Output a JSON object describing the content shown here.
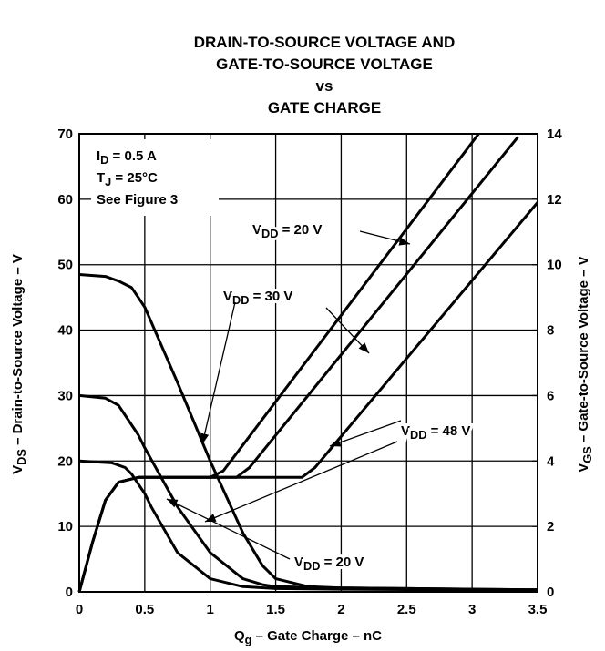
{
  "chart_data": {
    "type": "line",
    "title": [
      "DRAIN-TO-SOURCE VOLTAGE AND",
      "GATE-TO-SOURCE VOLTAGE",
      "vs",
      "GATE CHARGE"
    ],
    "xlabel": {
      "prefix": "Q",
      "sub": "g",
      "suffix": " – Gate Charge – nC"
    },
    "ylabel": {
      "prefix": "V",
      "sub": "DS",
      "suffix": " – Drain-to-Source Voltage – V"
    },
    "y2label": {
      "prefix": "V",
      "sub": "GS",
      "suffix": " – Gate-to-Source Voltage – V"
    },
    "xlim": [
      0,
      3.5
    ],
    "xticks": [
      0,
      0.5,
      1,
      1.5,
      2,
      2.5,
      3,
      3.5
    ],
    "ylim": [
      0,
      70
    ],
    "yticks": [
      0,
      10,
      20,
      30,
      40,
      50,
      60,
      70
    ],
    "y2lim": [
      0,
      14
    ],
    "y2ticks": [
      0,
      2,
      4,
      6,
      8,
      10,
      12,
      14
    ],
    "grid": true,
    "color": "#000000",
    "conditions": [
      {
        "prefix": "I",
        "sub": "D",
        "suffix": " = 0.5 A"
      },
      {
        "prefix": "T",
        "sub": "J",
        "suffix": " = 25°C"
      },
      {
        "prefix": "See Figure 3",
        "sub": "",
        "suffix": ""
      }
    ],
    "annotations": [
      {
        "prefix": "V",
        "sub": "DD",
        "suffix": " = 20 V"
      },
      {
        "prefix": "V",
        "sub": "DD",
        "suffix": " = 30 V"
      },
      {
        "prefix": "V",
        "sub": "DD",
        "suffix": " = 48 V"
      },
      {
        "prefix": "V",
        "sub": "DD",
        "suffix": " = 20 V"
      }
    ],
    "series": [
      {
        "x": [
          0,
          0.2,
          0.3,
          0.4,
          0.45,
          0.5,
          0.75,
          1.0,
          1.25,
          1.4,
          1.5,
          1.75,
          2,
          2.5,
          3,
          3.5
        ],
        "values": [
          48.5,
          48.2,
          47.5,
          46.5,
          45,
          43.5,
          32,
          20,
          9,
          4,
          2,
          0.8,
          0.6,
          0.5,
          0.4,
          0.3
        ]
      },
      {
        "x": [
          0,
          0.2,
          0.3,
          0.35,
          0.45,
          0.5,
          0.75,
          1.0,
          1.25,
          1.4,
          1.5,
          2,
          2.5,
          3,
          3.5
        ],
        "values": [
          30,
          29.6,
          28.5,
          27,
          24,
          22,
          13,
          6,
          2,
          1.1,
          0.8,
          0.6,
          0.5,
          0.4,
          0.3
        ]
      },
      {
        "x": [
          0,
          0.25,
          0.35,
          0.4,
          0.5,
          0.55,
          0.75,
          1.0,
          1.25,
          1.5,
          2,
          2.5,
          3,
          3.5
        ],
        "values": [
          20,
          19.7,
          19,
          18,
          15,
          13,
          6,
          2,
          0.8,
          0.5,
          0.4,
          0.35,
          0.3,
          0.3
        ]
      },
      {
        "axis": "y2",
        "x": [
          0,
          0.1,
          0.2,
          0.3,
          0.45,
          1.0,
          1.1,
          3.05
        ],
        "values": [
          0,
          1.5,
          2.8,
          3.35,
          3.5,
          3.5,
          3.7,
          14
        ]
      },
      {
        "axis": "y2",
        "x": [
          0,
          0.1,
          0.2,
          0.3,
          0.45,
          1.2,
          1.3,
          3.35
        ],
        "values": [
          0,
          1.5,
          2.8,
          3.35,
          3.5,
          3.5,
          3.8,
          13.9
        ]
      },
      {
        "axis": "y2",
        "x": [
          0,
          0.1,
          0.2,
          0.3,
          0.45,
          1.7,
          1.8,
          3.5
        ],
        "values": [
          0,
          1.5,
          2.8,
          3.35,
          3.5,
          3.5,
          3.8,
          11.9
        ]
      }
    ]
  }
}
